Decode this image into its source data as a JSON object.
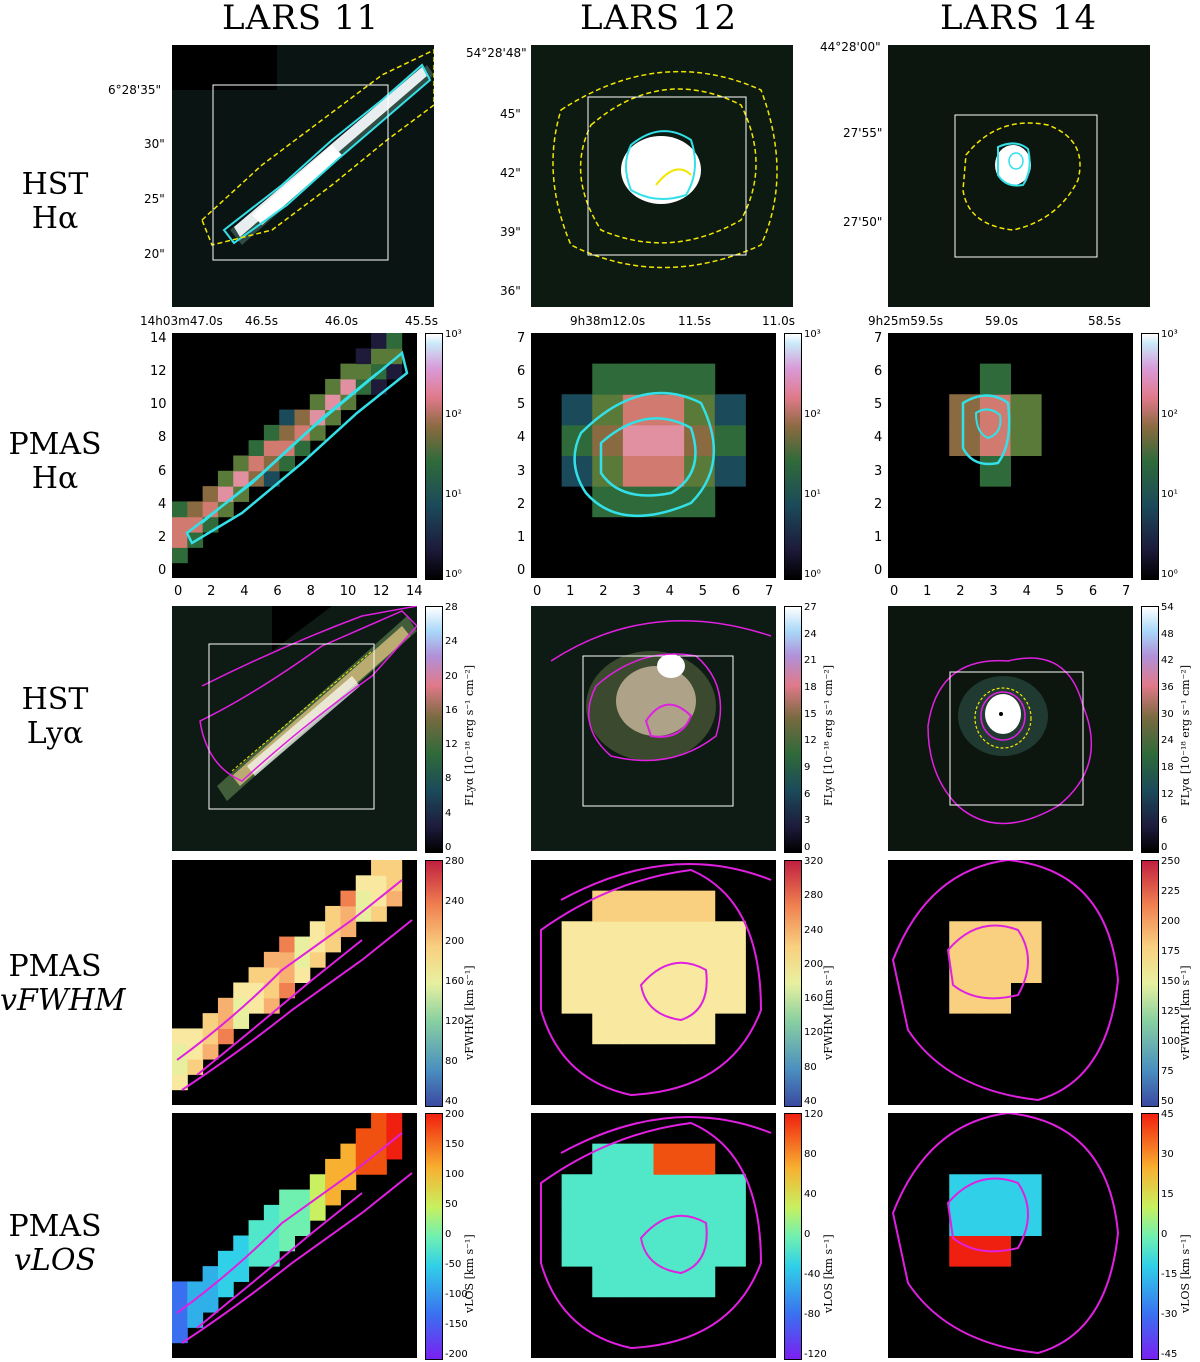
{
  "columns": [
    {
      "title": "LARS 11"
    },
    {
      "title": "LARS 12"
    },
    {
      "title": "LARS 14"
    }
  ],
  "rows": [
    {
      "line1": "HST",
      "line2": "Hα"
    },
    {
      "line1": "PMAS",
      "line2": "Hα"
    },
    {
      "line1": "HST",
      "line2": "Lyα"
    },
    {
      "line1": "PMAS",
      "line2": "vFWHM"
    },
    {
      "line1": "PMAS",
      "line2": "vLOS"
    }
  ],
  "hst_ha_coords": [
    {
      "dec": [
        "6°28'35\"",
        "30\"",
        "25\"",
        "20\""
      ],
      "ra": [
        "14h03m47.0s",
        "46.5s",
        "46.0s",
        "45.5s"
      ]
    },
    {
      "dec": [
        "54°28'48\"",
        "45\"",
        "42\"",
        "39\"",
        "36\""
      ],
      "ra": [
        "9h38m12.0s",
        "11.5s",
        "11.0s"
      ]
    },
    {
      "dec": [
        "44°28'00\"",
        "27'55\"",
        "27'50\""
      ],
      "ra": [
        "9h25m59.5s",
        "59.0s",
        "58.5s"
      ]
    }
  ],
  "pmas_ha_axes": [
    {
      "x": [
        "0",
        "2",
        "4",
        "6",
        "8",
        "10",
        "12",
        "14"
      ],
      "y": [
        "0",
        "2",
        "4",
        "6",
        "8",
        "10",
        "12",
        "14"
      ]
    },
    {
      "x": [
        "0",
        "1",
        "2",
        "3",
        "4",
        "5",
        "6",
        "7"
      ],
      "y": [
        "0",
        "1",
        "2",
        "3",
        "4",
        "5",
        "6",
        "7"
      ]
    },
    {
      "x": [
        "0",
        "1",
        "2",
        "3",
        "4",
        "5",
        "6",
        "7"
      ],
      "y": [
        "0",
        "1",
        "2",
        "3",
        "4",
        "5",
        "6",
        "7"
      ]
    }
  ],
  "colorbars": {
    "pmas_ha": {
      "ticks": [
        "10³",
        "10²",
        "10¹",
        "10⁰"
      ]
    },
    "lya": [
      {
        "ticks": [
          "28",
          "24",
          "20",
          "16",
          "12",
          "8",
          "4",
          "0"
        ],
        "unit": "FLyα [10⁻¹⁸ erg s⁻¹ cm⁻²]"
      },
      {
        "ticks": [
          "27",
          "24",
          "21",
          "18",
          "15",
          "12",
          "9",
          "6",
          "3",
          "0"
        ],
        "unit": "FLyα [10⁻¹⁸ erg s⁻¹ cm⁻²]"
      },
      {
        "ticks": [
          "54",
          "48",
          "42",
          "36",
          "30",
          "24",
          "18",
          "12",
          "6",
          "0"
        ],
        "unit": "FLyα [10⁻¹⁸ erg s⁻¹ cm⁻²]"
      }
    ],
    "fwhm": [
      {
        "ticks": [
          "280",
          "240",
          "200",
          "160",
          "120",
          "80",
          "40"
        ],
        "unit": "vFWHM [km s⁻¹]"
      },
      {
        "ticks": [
          "320",
          "280",
          "240",
          "200",
          "160",
          "120",
          "80",
          "40"
        ],
        "unit": "vFWHM [km s⁻¹]"
      },
      {
        "ticks": [
          "250",
          "225",
          "200",
          "175",
          "150",
          "125",
          "100",
          "75",
          "50"
        ],
        "unit": "vFWHM [km s⁻¹]"
      }
    ],
    "los": [
      {
        "ticks": [
          "200",
          "150",
          "100",
          "50",
          "0",
          "-50",
          "-100",
          "-150",
          "-200"
        ],
        "unit": "vLOS [km s⁻¹]"
      },
      {
        "ticks": [
          "120",
          "80",
          "40",
          "0",
          "-40",
          "-80",
          "-120"
        ],
        "unit": "vLOS [km s⁻¹]"
      },
      {
        "ticks": [
          "45",
          "30",
          "15",
          "0",
          "-15",
          "-30",
          "-45"
        ],
        "unit": "vLOS [km s⁻¹]"
      }
    ]
  },
  "colors": {
    "contour_cyan": "#33e0e8",
    "contour_yellow": "#f2e600",
    "contour_magenta": "#e020e0",
    "box": "#ffffff"
  }
}
